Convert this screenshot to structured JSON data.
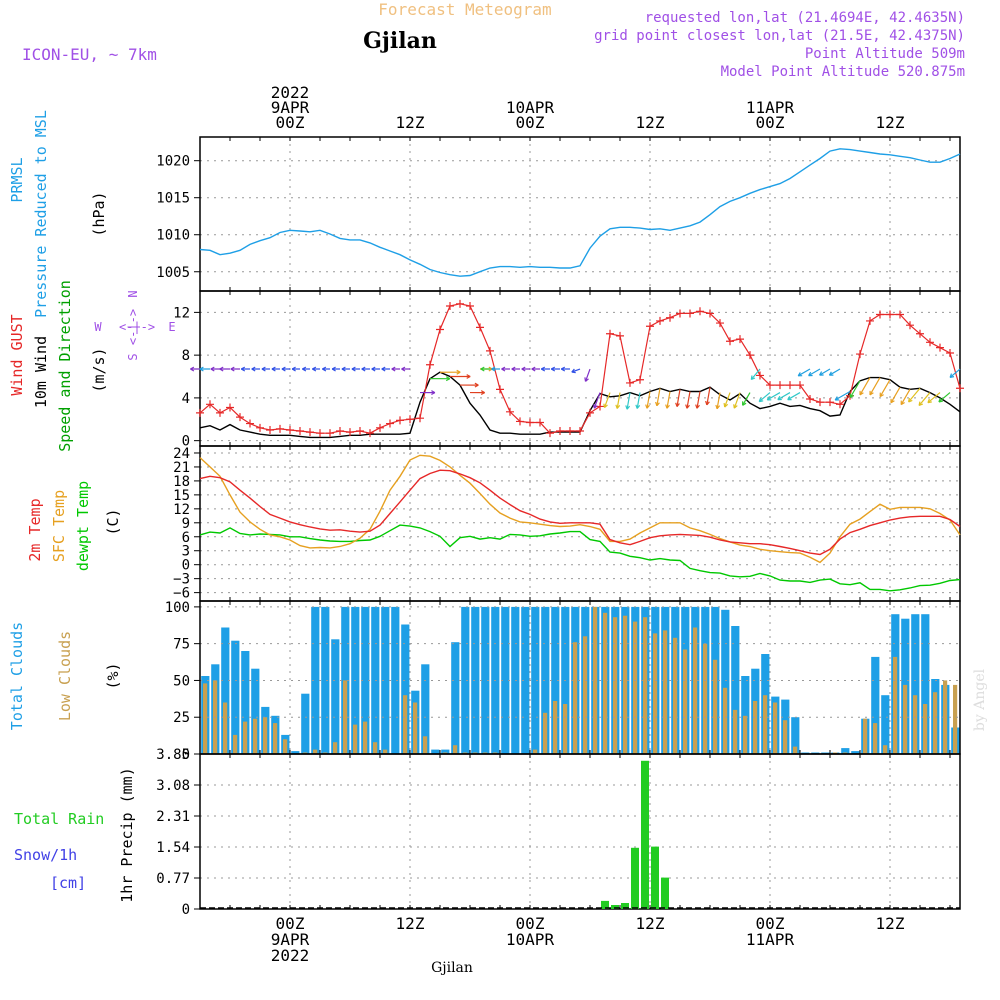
{
  "header": {
    "title": "Forecast Meteogram",
    "location": "Gjilan",
    "model": "ICON-EU, ~ 7km",
    "requested": "requested lon,lat (21.4694E, 42.4635N)",
    "grid_point": "grid point closest lon,lat (21.5E, 42.4375N)",
    "point_altitude": "Point Altitude 509m",
    "model_altitude": "Model Point Altitude 520.875m",
    "footer_location": "Gjilan",
    "credit": "by Angel"
  },
  "time_axis": {
    "hours": 76,
    "top_labels": [
      {
        "lines": [
          "2022",
          "9APR",
          "00Z"
        ],
        "hour": 9
      },
      {
        "lines": [
          "12Z"
        ],
        "hour": 21
      },
      {
        "lines": [
          "10APR",
          "00Z"
        ],
        "hour": 33
      },
      {
        "lines": [
          "12Z"
        ],
        "hour": 45
      },
      {
        "lines": [
          "11APR",
          "00Z"
        ],
        "hour": 57
      },
      {
        "lines": [
          "12Z"
        ],
        "hour": 69
      }
    ],
    "bottom_labels": [
      {
        "lines": [
          "00Z",
          "9APR",
          "2022"
        ],
        "hour": 9
      },
      {
        "lines": [
          "12Z"
        ],
        "hour": 21
      },
      {
        "lines": [
          "00Z",
          "10APR"
        ],
        "hour": 33
      },
      {
        "lines": [
          "12Z"
        ],
        "hour": 45
      },
      {
        "lines": [
          "00Z",
          "11APR"
        ],
        "hour": 57
      },
      {
        "lines": [
          "12Z"
        ],
        "hour": 69
      }
    ]
  },
  "colors": {
    "pressure": "#1e9fe6",
    "gust": "#e62828",
    "wind": "#000000",
    "wind_label": "#00a000",
    "temp2m": "#e62828",
    "sfc": "#e6a020",
    "dewpt": "#00c800",
    "total_clouds": "#1e9fe6",
    "low_clouds": "#c8a050",
    "rain": "#22cc22",
    "snow": "#4040e6",
    "compass": "#a050e6",
    "title": "#f0c080",
    "info": "#a050e6"
  },
  "chart_data": [
    {
      "type": "line",
      "id": "pressure",
      "ylabel_lines": [
        "PRMSL",
        "Pressure Reduced to MSL"
      ],
      "unit": "(hPa)",
      "ylim": [
        1002.4,
        1023.2
      ],
      "yticks": [
        1005,
        1010,
        1015,
        1020
      ],
      "series": [
        {
          "name": "PRMSL",
          "values": [
            1008.0,
            1007.9,
            1007.3,
            1007.5,
            1007.9,
            1008.7,
            1009.2,
            1009.6,
            1010.3,
            1010.6,
            1010.5,
            1010.4,
            1010.6,
            1010.1,
            1009.5,
            1009.3,
            1009.3,
            1008.9,
            1008.3,
            1007.8,
            1007.3,
            1006.6,
            1006.0,
            1005.3,
            1004.9,
            1004.6,
            1004.4,
            1004.5,
            1005.0,
            1005.5,
            1005.7,
            1005.7,
            1005.6,
            1005.7,
            1005.6,
            1005.6,
            1005.5,
            1005.5,
            1005.8,
            1008.2,
            1009.8,
            1010.8,
            1011.0,
            1011.0,
            1010.9,
            1010.7,
            1010.8,
            1010.6,
            1010.9,
            1011.2,
            1011.7,
            1012.7,
            1013.8,
            1014.5,
            1015.0,
            1015.6,
            1016.1,
            1016.5,
            1016.9,
            1017.6,
            1018.5,
            1019.4,
            1020.3,
            1021.3,
            1021.6,
            1021.5,
            1021.3,
            1021.1,
            1020.9,
            1020.8,
            1020.6,
            1020.4,
            1020.1,
            1019.8,
            1019.8,
            1020.3,
            1020.9
          ]
        }
      ]
    },
    {
      "type": "line",
      "id": "wind",
      "ylabel_lines": [
        "Wind GUST",
        "10m Wind",
        "Speed and Direction"
      ],
      "unit": "(m/s)",
      "compass": {
        "n": "N",
        "s": "S",
        "w": "W",
        "e": "E"
      },
      "ylim": [
        -0.5,
        14.0
      ],
      "yticks": [
        0,
        4,
        8,
        12
      ],
      "series": [
        {
          "name": "Wind GUST",
          "values": [
            2.6,
            3.4,
            2.6,
            3.1,
            2.2,
            1.6,
            1.2,
            1.0,
            1.1,
            1.0,
            0.9,
            0.8,
            0.7,
            0.7,
            0.9,
            0.8,
            0.9,
            0.7,
            1.2,
            1.6,
            1.9,
            2.0,
            2.1,
            7.1,
            10.4,
            12.6,
            12.8,
            12.6,
            10.6,
            8.4,
            4.8,
            2.7,
            1.8,
            1.7,
            1.7,
            0.7,
            0.9,
            0.9,
            0.9,
            2.6,
            3.2,
            10.0,
            9.8,
            5.4,
            5.7,
            10.7,
            11.2,
            11.5,
            11.9,
            11.9,
            12.1,
            11.9,
            11.0,
            9.3,
            9.5,
            8.0,
            6.1,
            5.2,
            5.2,
            5.2,
            5.2,
            3.9,
            3.6,
            3.6,
            3.4,
            4.2,
            8.1,
            11.2,
            11.8,
            11.8,
            11.8,
            10.8,
            10.0,
            9.2,
            8.7,
            8.2,
            4.9
          ]
        },
        {
          "name": "10m Wind",
          "values": [
            1.2,
            1.4,
            1.0,
            1.5,
            1.0,
            0.8,
            0.6,
            0.5,
            0.5,
            0.5,
            0.4,
            0.3,
            0.3,
            0.3,
            0.4,
            0.5,
            0.5,
            0.6,
            0.6,
            0.6,
            0.6,
            0.7,
            3.6,
            5.8,
            6.4,
            6.0,
            5.2,
            3.5,
            2.4,
            1.0,
            0.7,
            0.7,
            0.6,
            0.6,
            0.6,
            0.8,
            0.8,
            0.8,
            0.8,
            2.8,
            4.4,
            4.1,
            4.2,
            4.5,
            4.2,
            4.6,
            4.9,
            4.6,
            4.8,
            4.6,
            4.6,
            5.0,
            4.3,
            3.8,
            4.4,
            3.5,
            3.0,
            3.2,
            3.5,
            3.2,
            3.3,
            3.0,
            2.8,
            2.3,
            2.4,
            4.6,
            5.6,
            5.9,
            5.9,
            5.7,
            5.0,
            4.8,
            4.9,
            4.5,
            4.0,
            3.4,
            2.7
          ]
        },
        {
          "name": "Direction",
          "description": "arrows pointing downwind",
          "values": [
            270,
            270,
            270,
            270,
            270,
            270,
            270,
            270,
            270,
            270,
            270,
            270,
            270,
            270,
            270,
            270,
            270,
            270,
            270,
            270,
            270,
            270,
            90,
            90,
            90,
            90,
            90,
            90,
            90,
            270,
            270,
            270,
            270,
            270,
            270,
            270,
            270,
            270,
            250,
            200,
            200,
            200,
            190,
            190,
            190,
            190,
            190,
            190,
            190,
            190,
            190,
            190,
            190,
            200,
            200,
            210,
            220,
            230,
            240,
            240,
            240,
            240,
            240,
            240,
            240,
            240,
            210,
            210,
            210,
            210,
            210,
            210,
            220,
            220,
            230,
            230,
            230
          ]
        }
      ]
    },
    {
      "type": "line",
      "id": "temperature",
      "ylabel_lines": [
        "2m Temp",
        "SFC Temp",
        "dewpt Temp"
      ],
      "unit": "(C)",
      "ylim": [
        -7.8,
        25.5
      ],
      "yticks": [
        -6,
        -3,
        0,
        3,
        6,
        9,
        12,
        15,
        18,
        21,
        24
      ],
      "series": [
        {
          "name": "2m Temp",
          "values": [
            18.5,
            19.0,
            18.7,
            17.8,
            16.0,
            14.3,
            12.5,
            10.8,
            10.0,
            9.2,
            8.6,
            8.1,
            7.7,
            7.4,
            7.5,
            7.2,
            7.0,
            7.2,
            8.5,
            11.0,
            13.5,
            16.0,
            18.5,
            19.6,
            20.3,
            20.2,
            19.5,
            18.7,
            17.6,
            16.0,
            14.3,
            12.9,
            11.6,
            10.8,
            9.8,
            9.2,
            8.9,
            9.0,
            9.0,
            9.0,
            8.7,
            5.4,
            4.7,
            4.3,
            5.0,
            5.8,
            6.2,
            6.4,
            6.5,
            6.4,
            6.3,
            5.9,
            5.3,
            4.9,
            4.7,
            4.5,
            4.5,
            4.3,
            3.9,
            3.5,
            3.0,
            2.5,
            2.2,
            3.3,
            5.5,
            6.9,
            7.6,
            8.4,
            9.0,
            9.6,
            10.0,
            10.3,
            10.4,
            10.4,
            10.4,
            9.7,
            8.2
          ]
        },
        {
          "name": "SFC Temp",
          "values": [
            23.0,
            21.0,
            19.0,
            15.0,
            11.3,
            9.2,
            7.6,
            6.4,
            6.0,
            5.3,
            4.1,
            3.6,
            3.7,
            3.6,
            3.9,
            4.5,
            5.7,
            7.6,
            11.5,
            16.0,
            19.0,
            22.5,
            23.5,
            23.3,
            22.4,
            21.0,
            19.2,
            17.5,
            15.3,
            13.0,
            11.1,
            10.0,
            9.2,
            9.0,
            8.7,
            8.4,
            8.2,
            8.3,
            8.6,
            8.2,
            7.6,
            5.0,
            5.0,
            5.5,
            6.8,
            7.9,
            9.0,
            9.0,
            9.0,
            7.9,
            7.3,
            6.5,
            5.6,
            4.9,
            4.2,
            3.9,
            3.3,
            3.0,
            2.8,
            2.6,
            2.5,
            1.6,
            0.5,
            2.5,
            6.0,
            8.7,
            9.8,
            11.4,
            13.0,
            11.9,
            12.3,
            12.3,
            12.3,
            12.0,
            11.0,
            9.6,
            6.4
          ]
        },
        {
          "name": "dewpt Temp",
          "values": [
            6.4,
            7.0,
            6.8,
            7.9,
            6.7,
            6.4,
            6.6,
            6.5,
            6.4,
            6.0,
            6.0,
            5.6,
            5.3,
            5.1,
            5.0,
            5.0,
            5.2,
            5.3,
            6.1,
            7.3,
            8.5,
            8.3,
            7.9,
            7.1,
            6.1,
            3.9,
            5.8,
            6.1,
            5.5,
            5.8,
            5.5,
            6.5,
            6.4,
            6.1,
            6.2,
            6.6,
            6.8,
            7.1,
            7.1,
            5.4,
            5.0,
            2.7,
            2.5,
            1.8,
            1.5,
            1.0,
            1.3,
            1.0,
            0.9,
            -0.8,
            -1.3,
            -1.7,
            -1.8,
            -2.4,
            -2.6,
            -2.5,
            -1.9,
            -2.4,
            -3.3,
            -3.5,
            -3.5,
            -3.8,
            -3.3,
            -3.1,
            -4.1,
            -4.3,
            -3.9,
            -5.3,
            -5.3,
            -5.6,
            -5.4,
            -5.0,
            -4.5,
            -4.4,
            -4.0,
            -3.4,
            -3.2
          ]
        }
      ]
    },
    {
      "type": "bar",
      "id": "clouds",
      "ylabel_lines": [
        "Total Clouds",
        "Low Clouds"
      ],
      "unit": "(%)",
      "ylim": [
        0,
        104
      ],
      "yticks": [
        0,
        25,
        50,
        75,
        100
      ],
      "series": [
        {
          "name": "Total Clouds",
          "values": [
            53,
            61,
            86,
            77,
            70,
            58,
            32,
            26,
            13,
            2,
            41,
            100,
            100,
            78,
            100,
            100,
            100,
            100,
            100,
            100,
            88,
            43,
            61,
            3,
            3,
            76,
            100,
            100,
            100,
            100,
            100,
            100,
            100,
            100,
            100,
            100,
            100,
            100,
            100,
            100,
            100,
            100,
            100,
            100,
            100,
            100,
            100,
            100,
            100,
            100,
            100,
            100,
            98,
            87,
            53,
            58,
            68,
            39,
            37,
            25,
            1,
            1,
            1,
            1,
            4,
            2,
            24,
            66,
            40,
            95,
            92,
            95,
            95,
            51,
            47,
            18
          ]
        },
        {
          "name": "Low Clouds",
          "values": [
            48,
            50,
            35,
            13,
            22,
            24,
            25,
            21,
            10,
            0,
            1,
            3,
            1,
            8,
            50,
            20,
            22,
            8,
            3,
            0,
            40,
            35,
            12,
            0,
            1,
            6,
            1,
            1,
            1,
            1,
            0,
            0,
            0,
            3,
            28,
            36,
            34,
            76,
            80,
            100,
            96,
            93,
            94,
            90,
            93,
            82,
            84,
            79,
            71,
            86,
            75,
            64,
            45,
            30,
            26,
            36,
            40,
            35,
            23,
            5,
            0,
            0,
            0,
            1,
            1,
            0,
            24,
            21,
            6,
            66,
            47,
            40,
            34,
            42,
            50,
            47
          ]
        }
      ]
    },
    {
      "type": "bar",
      "id": "precip",
      "ylabel_lines": [
        "1hr Precip (mm)"
      ],
      "side_labels": {
        "total_rain": "Total  Rain",
        "snow": "Snow/1h",
        "cm": "[cm]"
      },
      "ylim": [
        0,
        3.85
      ],
      "yticks": [
        {
          "value": 0,
          "label": "0"
        },
        {
          "value": 0.77,
          "label": "0.77"
        },
        {
          "value": 1.54,
          "label": "1.54"
        },
        {
          "value": 2.31,
          "label": "2.31"
        },
        {
          "value": 3.08,
          "label": "3.08"
        },
        {
          "value": 3.85,
          "label": "3.85"
        }
      ],
      "series": [
        {
          "name": "Total Rain",
          "values": [
            0,
            0,
            0,
            0,
            0,
            0,
            0,
            0,
            0,
            0,
            0,
            0,
            0,
            0,
            0,
            0,
            0,
            0,
            0,
            0,
            0,
            0,
            0,
            0,
            0,
            0,
            0,
            0,
            0,
            0,
            0,
            0,
            0,
            0,
            0,
            0,
            0,
            0,
            0,
            0,
            0.2,
            0.1,
            0.15,
            1.52,
            3.68,
            1.55,
            0.78,
            0,
            0,
            0,
            0,
            0,
            0,
            0,
            0,
            0,
            0,
            0,
            0,
            0,
            0,
            0,
            0,
            0,
            0,
            0,
            0,
            0,
            0,
            0,
            0,
            0,
            0,
            0,
            0,
            0
          ]
        },
        {
          "name": "Snow",
          "values": []
        }
      ]
    }
  ]
}
